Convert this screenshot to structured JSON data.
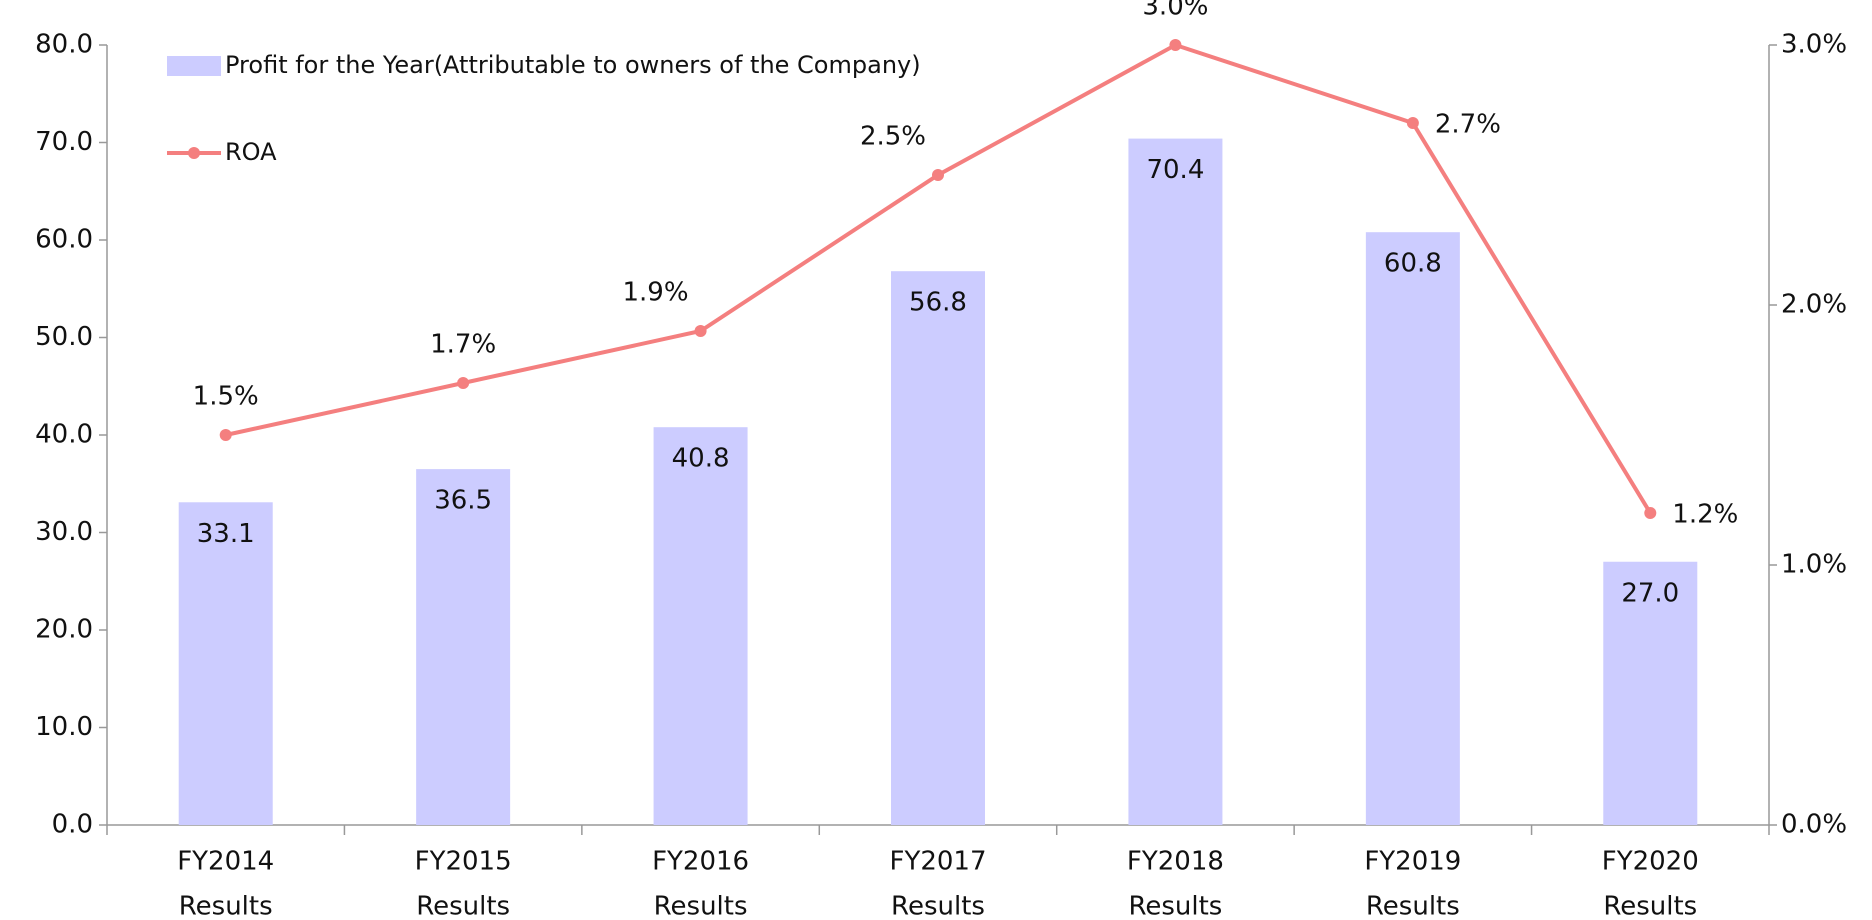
{
  "chart_data": {
    "type": "bar",
    "categories": [
      [
        "FY2014",
        "Results"
      ],
      [
        "FY2015",
        "Results"
      ],
      [
        "FY2016",
        "Results"
      ],
      [
        "FY2017",
        "Results"
      ],
      [
        "FY2018",
        "Results"
      ],
      [
        "FY2019",
        "Results"
      ],
      [
        "FY2020",
        "Results"
      ]
    ],
    "series": [
      {
        "name": "Profit for the Year(Attributable to owners of the Company)",
        "type": "bar",
        "color": "#ccccff",
        "values": [
          33.1,
          36.5,
          40.8,
          56.8,
          70.4,
          60.8,
          27.0
        ],
        "value_labels": [
          "33.1",
          "36.5",
          "40.8",
          "56.8",
          "70.4",
          "60.8",
          "27.0"
        ]
      },
      {
        "name": "ROA",
        "type": "line",
        "axis": "y2",
        "color": "#f47f7f",
        "values": [
          1.5,
          1.7,
          1.9,
          2.5,
          3.0,
          2.7,
          1.2
        ],
        "value_labels": [
          "1.5%",
          "1.7%",
          "1.9%",
          "2.5%",
          "3.0%",
          "2.7%",
          "1.2%"
        ]
      }
    ],
    "ylim": [
      0,
      80
    ],
    "yticks": [
      {
        "value": 0,
        "label": "0.0"
      },
      {
        "value": 10,
        "label": "10.0"
      },
      {
        "value": 20,
        "label": "20.0"
      },
      {
        "value": 30,
        "label": "30.0"
      },
      {
        "value": 40,
        "label": "40.0"
      },
      {
        "value": 50,
        "label": "50.0"
      },
      {
        "value": 60,
        "label": "60.0"
      },
      {
        "value": 70,
        "label": "70.0"
      },
      {
        "value": 80,
        "label": "80.0"
      }
    ],
    "y2lim": [
      0,
      3
    ],
    "y2ticks": [
      {
        "value": 0,
        "label": "0.0%"
      },
      {
        "value": 1,
        "label": "1.0%"
      },
      {
        "value": 2,
        "label": "2.0%"
      },
      {
        "value": 3,
        "label": "3.0%"
      }
    ],
    "legend": "top-left"
  }
}
